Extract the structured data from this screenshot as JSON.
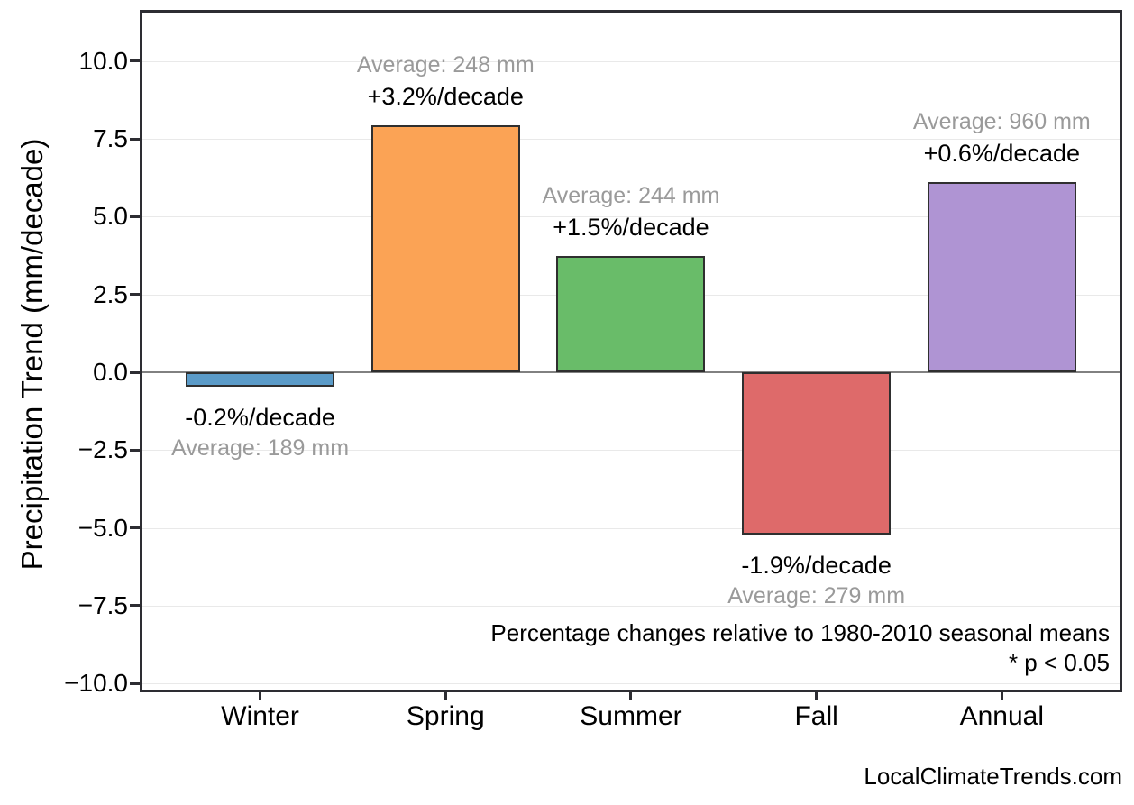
{
  "page": {
    "watermark": "LocalClimateTrends.com"
  },
  "chart_data": {
    "type": "bar",
    "title": "",
    "xlabel": "",
    "ylabel": "Precipitation Trend (mm/decade)",
    "categories": [
      "Winter",
      "Spring",
      "Summer",
      "Fall",
      "Annual"
    ],
    "values": [
      -0.45,
      7.95,
      3.75,
      -5.2,
      6.1
    ],
    "pct_per_decade": [
      -0.2,
      3.2,
      1.5,
      -1.9,
      0.6
    ],
    "averages_mm": [
      189,
      248,
      244,
      279,
      960
    ],
    "pct_labels": [
      "-0.2%/decade",
      "+3.2%/decade",
      "+1.5%/decade",
      "-1.9%/decade",
      "+0.6%/decade"
    ],
    "avg_labels": [
      "Average: 189 mm",
      "Average: 248 mm",
      "Average: 244 mm",
      "Average: 279 mm",
      "Average: 960 mm"
    ],
    "bar_colors": [
      "#5b9bc8",
      "#fba355",
      "#69bc69",
      "#de6a6a",
      "#af94d3"
    ],
    "bar_edge_color": "#2f2f2f",
    "y_ticks": [
      -10,
      -7.5,
      -5,
      -2.5,
      0,
      2.5,
      5,
      7.5,
      10
    ],
    "y_tick_labels": [
      "−10.0",
      "−7.5",
      "−5.0",
      "−2.5",
      "0.0",
      "2.5",
      "5.0",
      "7.5",
      "10.0"
    ],
    "ylim": [
      -10.25,
      11.6
    ],
    "grid": "horizontal light gridlines; darker zero line",
    "legend": "none",
    "annotations": [
      "Percentage changes relative to 1980-2010 seasonal means",
      "* p < 0.05"
    ]
  }
}
